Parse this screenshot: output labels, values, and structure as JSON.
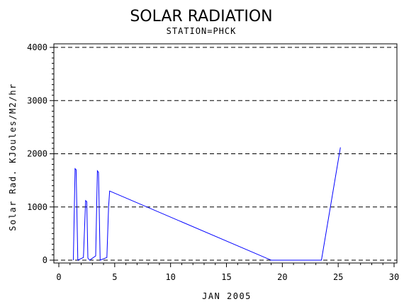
{
  "chart_data": {
    "type": "line",
    "title": "SOLAR RADIATION",
    "subtitle": "STATION=PHCK",
    "xlabel": "JAN 2005",
    "ylabel": "Solar Rad. KJoules/M2/hr",
    "xlim": [
      0,
      30
    ],
    "ylim": [
      0,
      4000
    ],
    "xticks": [
      0,
      5,
      10,
      15,
      20,
      25,
      30
    ],
    "yticks": [
      0,
      1000,
      2000,
      3000,
      4000
    ],
    "grid": "horizontal dashed",
    "series": [
      {
        "color": "#0000ff",
        "x": [
          1.3,
          1.45,
          1.55,
          1.7,
          2.2,
          2.4,
          2.5,
          2.6,
          2.75,
          3.3,
          3.45,
          3.55,
          3.7,
          4.3,
          4.45,
          4.55,
          19.0,
          23.5,
          25.2
        ],
        "y": [
          0,
          1720,
          1700,
          0,
          50,
          1120,
          1100,
          40,
          0,
          80,
          1680,
          1650,
          0,
          50,
          1000,
          1300,
          0,
          0,
          2120
        ]
      }
    ]
  }
}
